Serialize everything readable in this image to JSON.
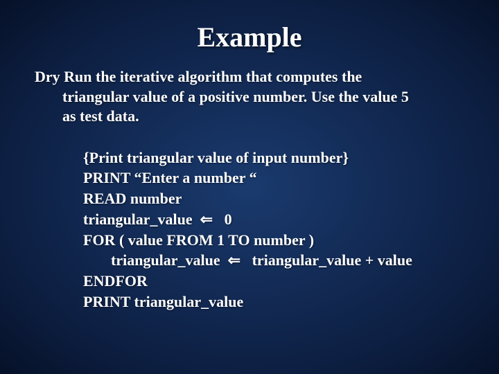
{
  "slide": {
    "title": "Example",
    "title_fontsize": 40,
    "description_fontsize": 22,
    "code_fontsize": 22,
    "description": {
      "line1": "Dry Run the iterative algorithm that computes the",
      "line2": "triangular value of a positive number. Use the value 5",
      "line3": "as test data."
    },
    "code": {
      "l1": "{Print triangular value of input number}",
      "l2": "PRINT “Enter a number “",
      "l3": "READ number",
      "l4": "triangular_value  ⇐   0",
      "l5": "FOR ( value FROM 1 TO number )",
      "l6": "triangular_value  ⇐   triangular_value + value",
      "l7": "ENDFOR",
      "l8": "PRINT triangular_value"
    },
    "colors": {
      "background_center": "#1a3a6e",
      "background_edge": "#061128",
      "text": "#ffffff"
    }
  }
}
